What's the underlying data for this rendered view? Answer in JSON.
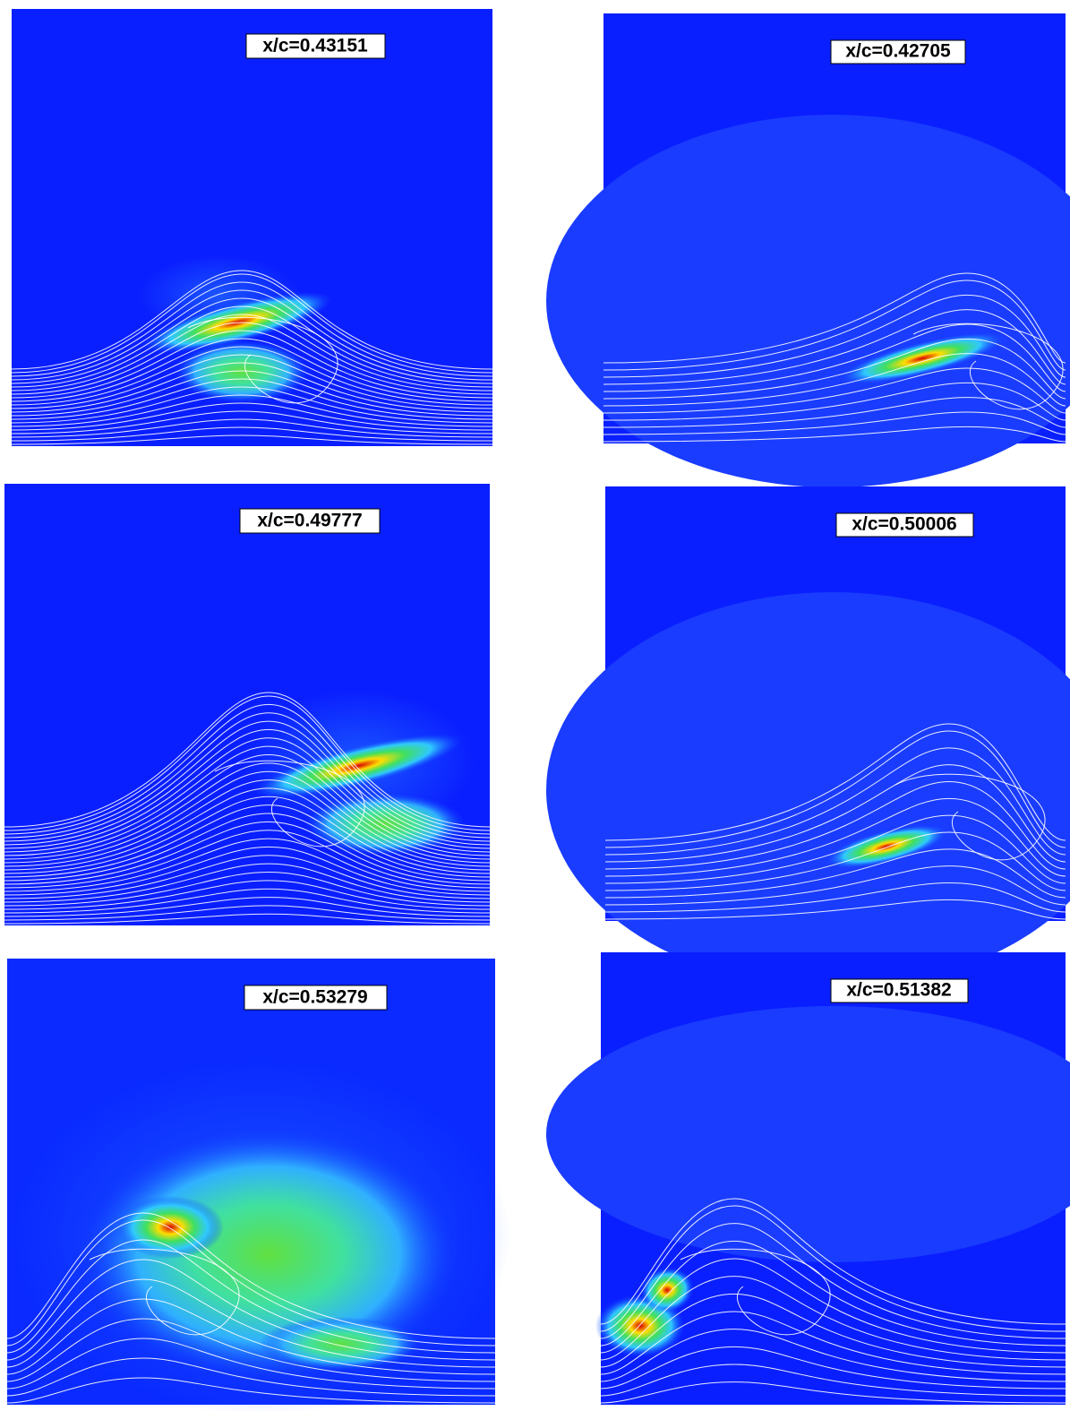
{
  "panels": [
    {
      "label": "x/c=0.43151"
    },
    {
      "label": "x/c=0.42705"
    },
    {
      "label": "x/c=0.49777"
    },
    {
      "label": "x/c=0.50006"
    },
    {
      "label": "x/c=0.53279"
    },
    {
      "label": "x/c=0.51382"
    }
  ]
}
